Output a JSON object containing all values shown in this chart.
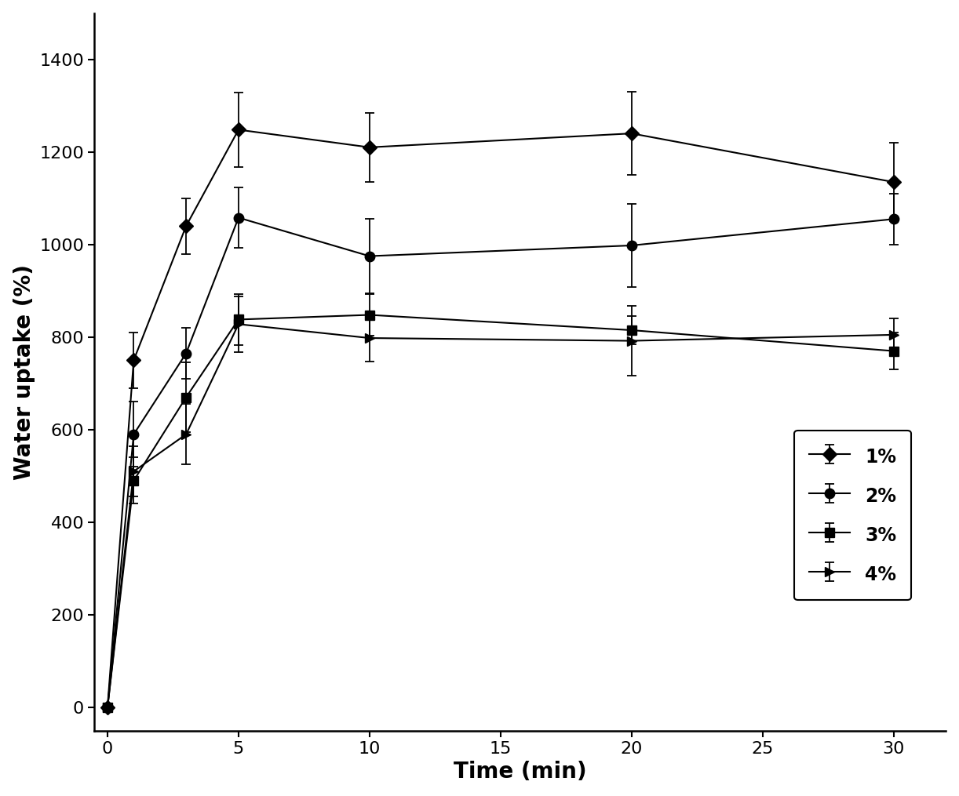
{
  "title": "",
  "xlabel": "Time (min)",
  "ylabel": "Water uptake (%)",
  "xlim": [
    -0.5,
    32
  ],
  "ylim": [
    -50,
    1500
  ],
  "xticks": [
    0,
    5,
    10,
    15,
    20,
    25,
    30
  ],
  "yticks": [
    0,
    200,
    400,
    600,
    800,
    1000,
    1200,
    1400
  ],
  "series": [
    {
      "label": "1%",
      "marker": "D",
      "x": [
        0,
        1,
        3,
        5,
        10,
        20,
        30
      ],
      "y": [
        0,
        750,
        1040,
        1248,
        1210,
        1240,
        1135
      ],
      "yerr": [
        0,
        60,
        60,
        80,
        75,
        90,
        85
      ]
    },
    {
      "label": "2%",
      "marker": "o",
      "x": [
        0,
        1,
        3,
        5,
        10,
        20,
        30
      ],
      "y": [
        0,
        590,
        765,
        1058,
        975,
        998,
        1055
      ],
      "yerr": [
        0,
        70,
        55,
        65,
        80,
        90,
        55
      ]
    },
    {
      "label": "3%",
      "marker": "s",
      "x": [
        0,
        1,
        3,
        5,
        10,
        20,
        30
      ],
      "y": [
        0,
        490,
        670,
        838,
        848,
        815,
        770
      ],
      "yerr": [
        0,
        50,
        75,
        55,
        45,
        30,
        40
      ]
    },
    {
      "label": "4%",
      "marker": ">",
      "x": [
        0,
        1,
        3,
        5,
        10,
        20,
        30
      ],
      "y": [
        0,
        510,
        590,
        828,
        798,
        792,
        805
      ],
      "yerr": [
        0,
        55,
        65,
        60,
        50,
        75,
        35
      ]
    }
  ],
  "color": "#000000",
  "linewidth": 1.5,
  "markersize": 9,
  "capsize": 4,
  "background_color": "#ffffff"
}
